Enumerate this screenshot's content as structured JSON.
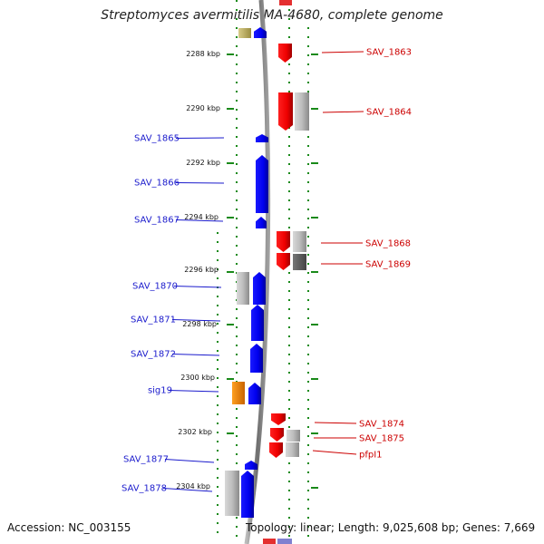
{
  "title": "Streptomyces avermitilis MA-4680, complete genome",
  "footer": {
    "accession": "Accession: NC_003155",
    "stats": "Topology: linear; Length: 9,025,608 bp; Genes: 7,669"
  },
  "colors": {
    "forward_gene": "#e00000",
    "reverse_gene": "#0000dd",
    "forward_label": "#cc0000",
    "reverse_label": "#1a1acc",
    "tick": "#1a8a1a",
    "backbone": "#808080"
  },
  "ruler": [
    {
      "label": "2288 kbp"
    },
    {
      "label": "2290 kbp"
    },
    {
      "label": "2292 kbp"
    },
    {
      "label": "2294 kbp"
    },
    {
      "label": "2296 kbp"
    },
    {
      "label": "2298 kbp"
    },
    {
      "label": "2300 kbp"
    },
    {
      "label": "2302 kbp"
    },
    {
      "label": "2304 kbp"
    }
  ],
  "genes_reverse": [
    {
      "name": "SAV_1865"
    },
    {
      "name": "SAV_1866"
    },
    {
      "name": "SAV_1867"
    },
    {
      "name": "SAV_1870"
    },
    {
      "name": "SAV_1871"
    },
    {
      "name": "SAV_1872"
    },
    {
      "name": "sig19"
    },
    {
      "name": "SAV_1877"
    },
    {
      "name": "SAV_1878"
    }
  ],
  "genes_forward": [
    {
      "name": "SAV_1863"
    },
    {
      "name": "SAV_1864"
    },
    {
      "name": "SAV_1868"
    },
    {
      "name": "SAV_1869"
    },
    {
      "name": "SAV_1874"
    },
    {
      "name": "SAV_1875"
    },
    {
      "name": "pfpI1"
    }
  ]
}
